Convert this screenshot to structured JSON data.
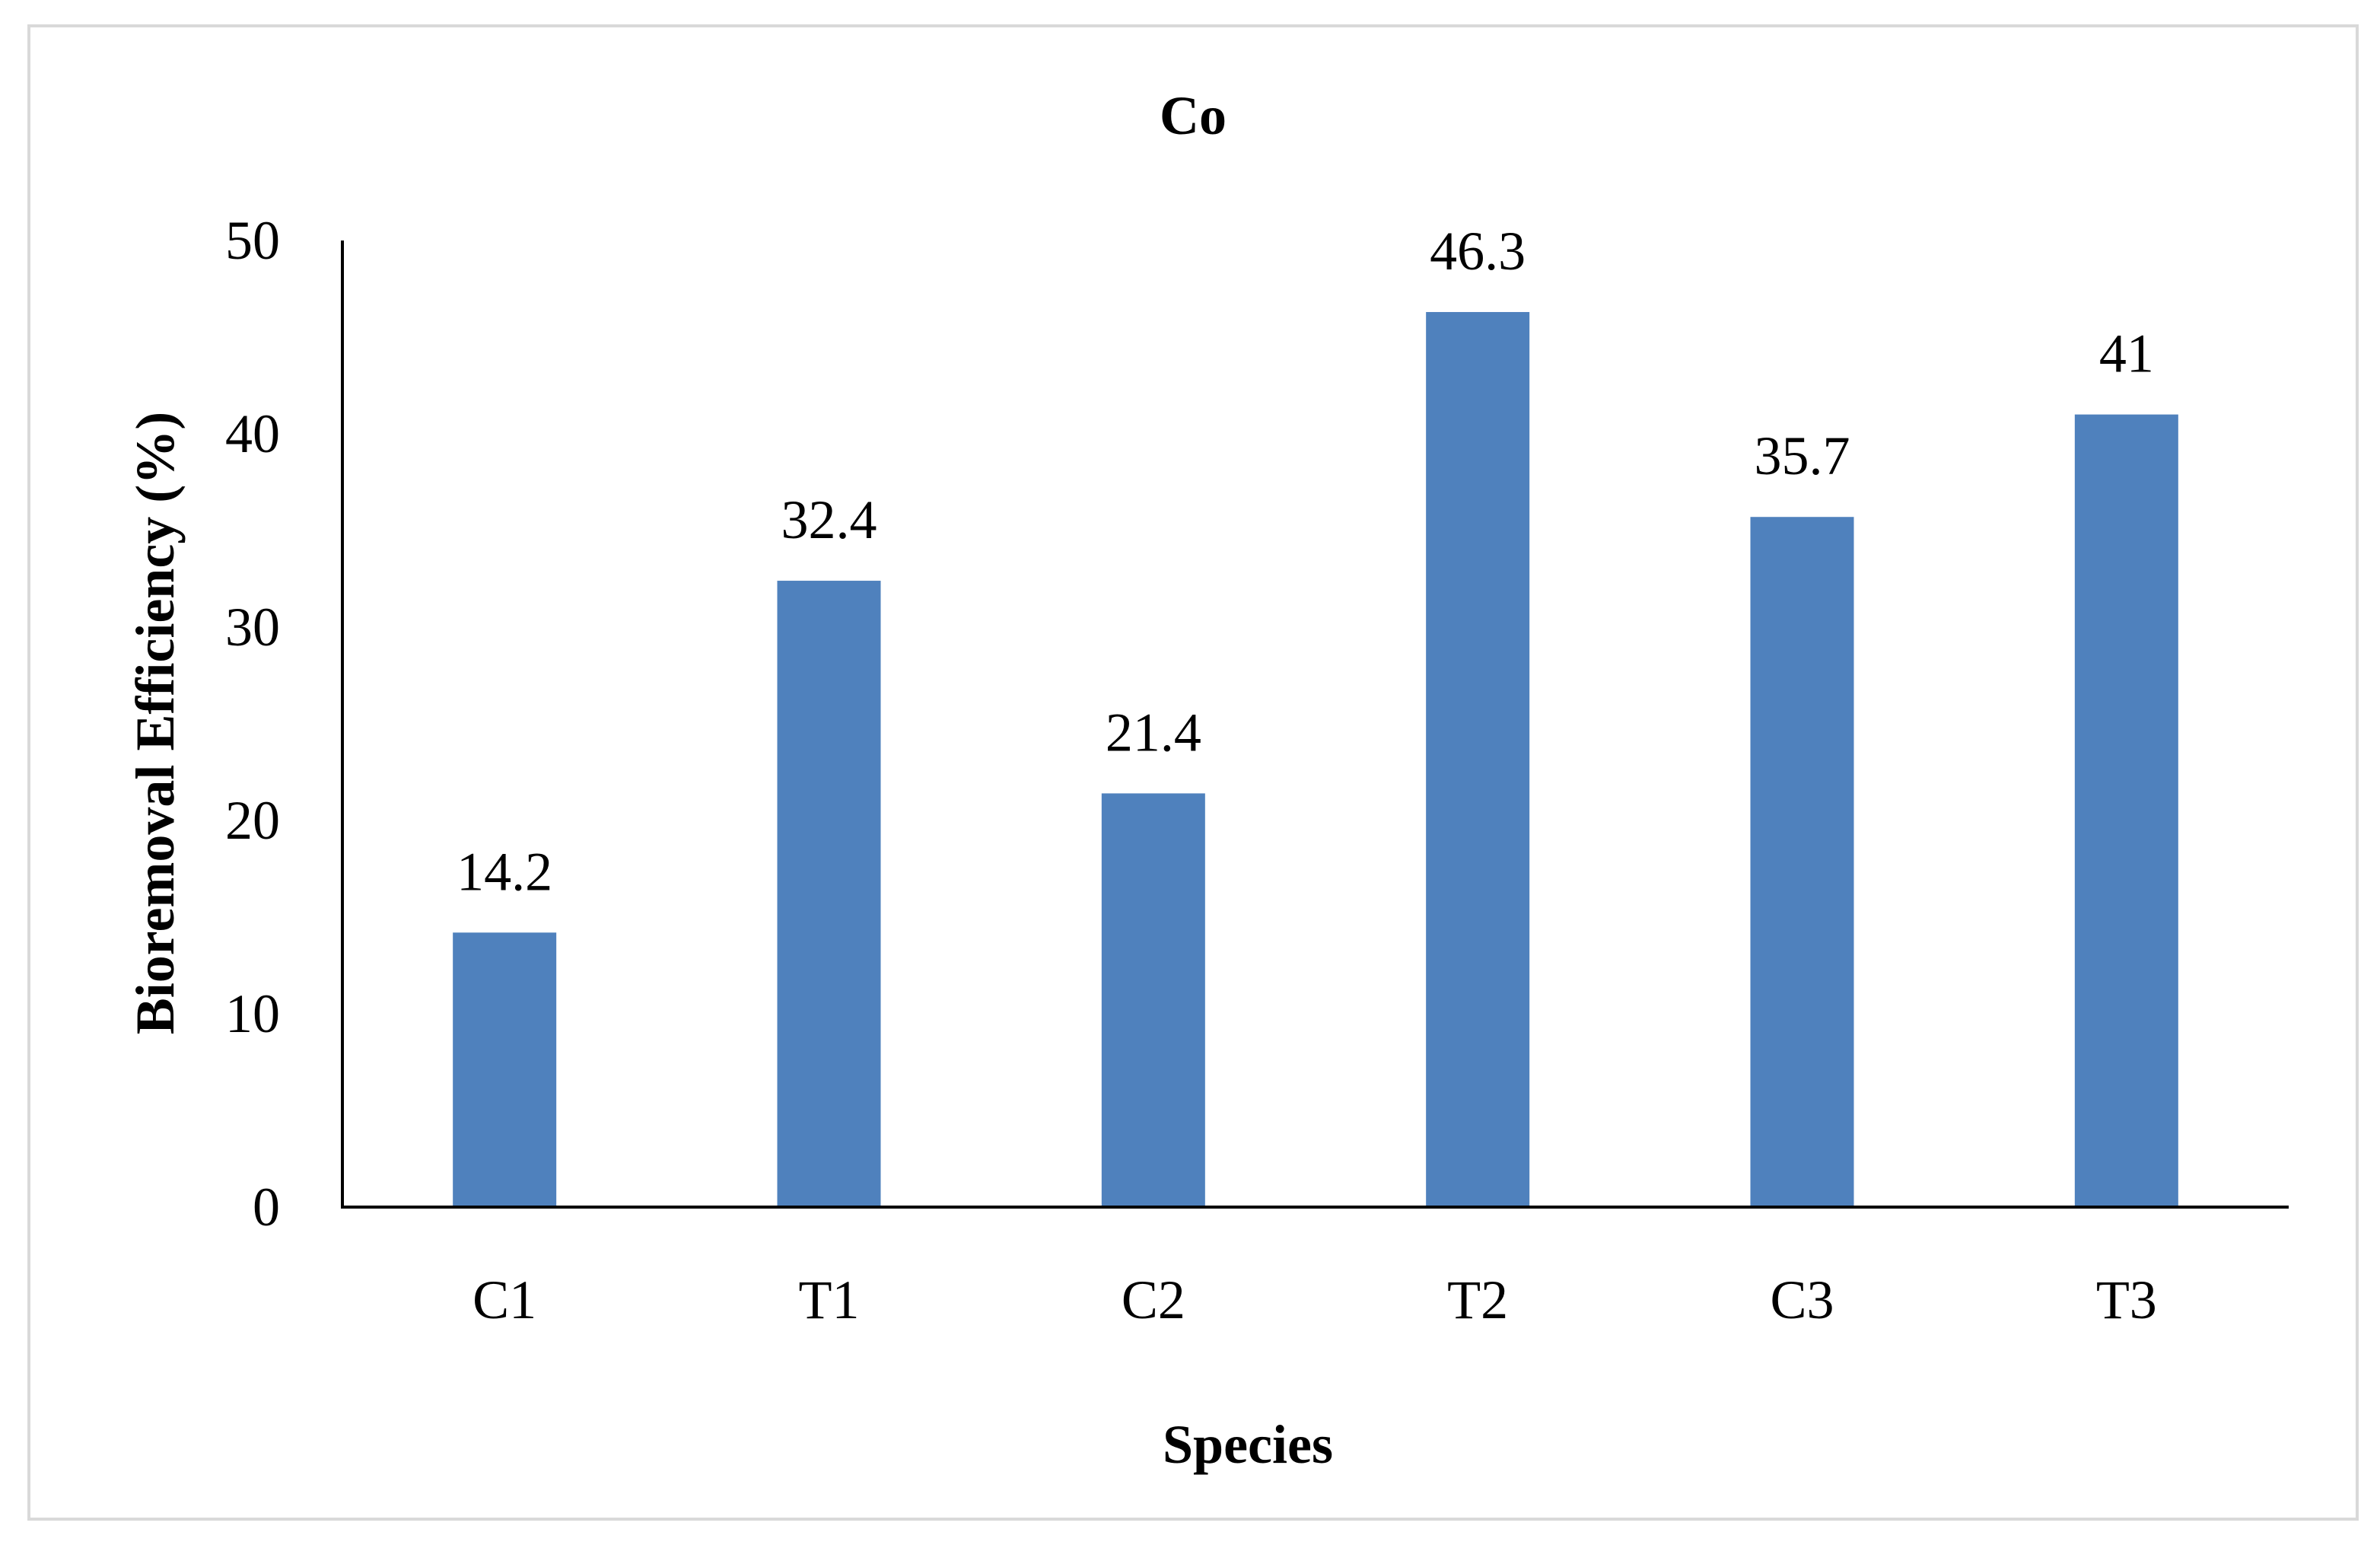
{
  "chart_data": {
    "type": "bar",
    "title": "Co",
    "xlabel": "Species",
    "ylabel": "Bioremoval Efficiency (%)",
    "categories": [
      "C1",
      "T1",
      "C2",
      "T2",
      "C3",
      "T3"
    ],
    "values": [
      14.2,
      32.4,
      21.4,
      46.3,
      35.7,
      41
    ],
    "value_labels": [
      "14.2",
      "32.4",
      "21.4",
      "46.3",
      "35.7",
      "41"
    ],
    "ylim": [
      0,
      50
    ],
    "yticks": [
      0,
      10,
      20,
      30,
      40,
      50
    ],
    "ytick_labels": [
      "0",
      "10",
      "20",
      "30",
      "40",
      "50"
    ],
    "grid": false,
    "legend": "none",
    "colors": {
      "bar": "#4f81bd",
      "axis": "#000000",
      "frame": "#d9d9d9"
    }
  }
}
